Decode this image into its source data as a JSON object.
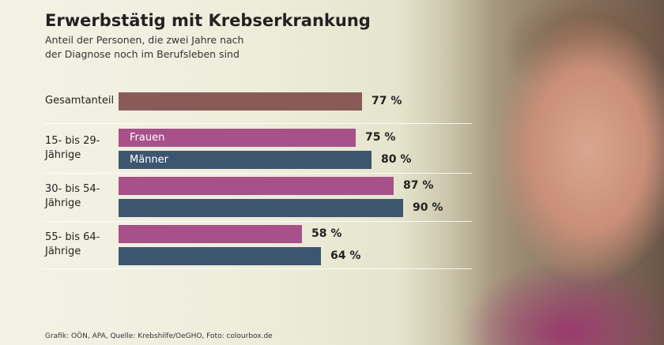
{
  "chart_data": {
    "type": "bar",
    "title": "Erwerbstätig mit Krebserkrankung",
    "subtitle": "Anteil der Personen, die zwei Jahre nach der Diagnose noch im Berufsleben sind",
    "source": "Grafik: OÖN, APA, Quelle: Krebshilfe/OeGHO, Foto: colourbox.de",
    "total": {
      "category": "Gesamtanteil",
      "value": 77,
      "value_label": "77 %",
      "color": "#8a5a58"
    },
    "categories": [
      "15- bis 29-Jährige",
      "30- bis 54-Jährige",
      "55- bis 64-Jährige"
    ],
    "series": [
      {
        "name": "Frauen",
        "color": "#a8508a",
        "values": [
          75,
          87,
          58
        ],
        "value_labels": [
          "75 %",
          "87 %",
          "58 %"
        ]
      },
      {
        "name": "Männer",
        "color": "#3c5670",
        "values": [
          80,
          90,
          64
        ],
        "value_labels": [
          "80 %",
          "90 %",
          "64 %"
        ]
      }
    ],
    "xlim": [
      0,
      100
    ]
  }
}
